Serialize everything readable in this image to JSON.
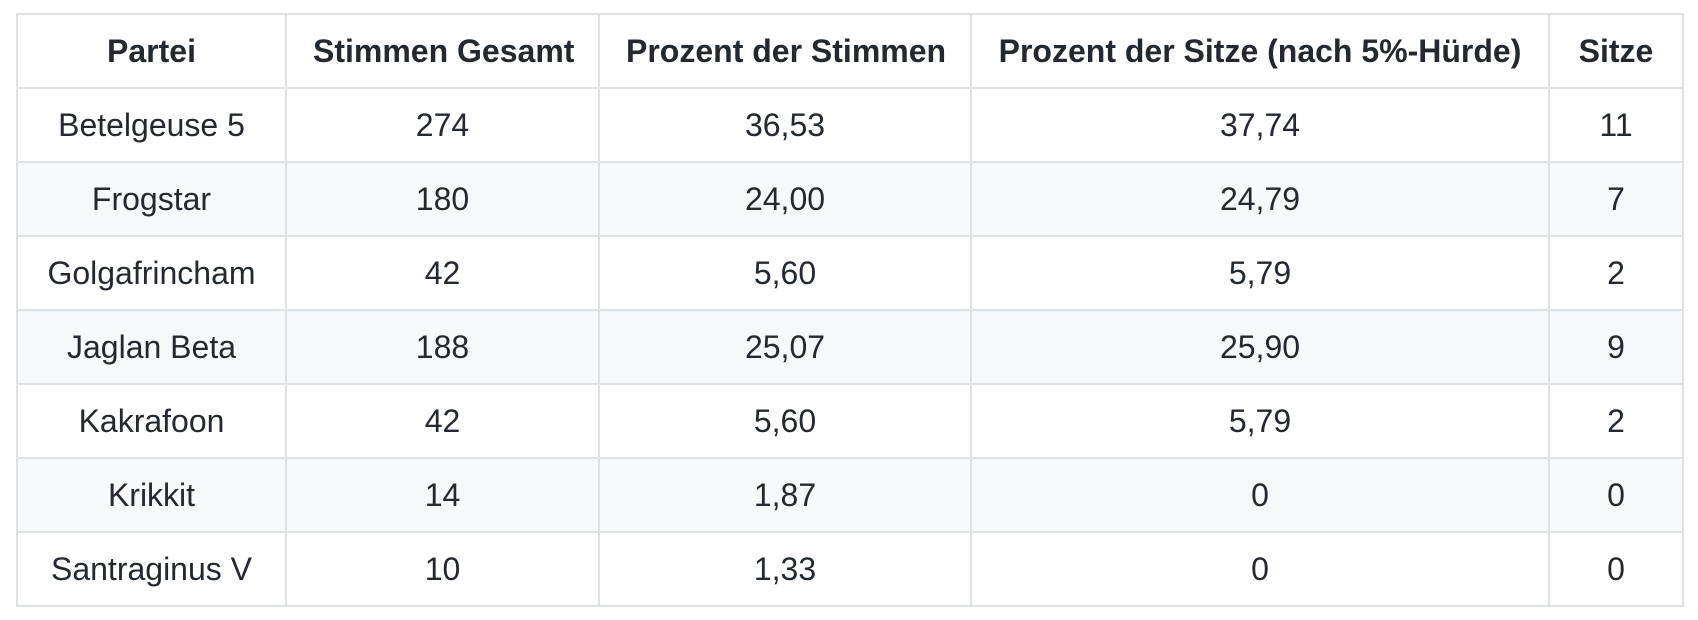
{
  "table": {
    "columns": [
      "Partei",
      "Stimmen Gesamt",
      "Prozent der Stimmen",
      "Prozent der Sitze (nach 5%-Hürde)",
      "Sitze"
    ],
    "rows": [
      [
        "Betelgeuse 5",
        "274",
        "36,53",
        "37,74",
        "11"
      ],
      [
        "Frogstar",
        "180",
        "24,00",
        "24,79",
        "7"
      ],
      [
        "Golgafrincham",
        "42",
        "5,60",
        "5,79",
        "2"
      ],
      [
        "Jaglan Beta",
        "188",
        "25,07",
        "25,90",
        "9"
      ],
      [
        "Kakrafoon",
        "42",
        "5,60",
        "5,79",
        "2"
      ],
      [
        "Krikkit",
        "14",
        "1,87",
        "0",
        "0"
      ],
      [
        "Santraginus V",
        "10",
        "1,33",
        "0",
        "0"
      ]
    ]
  },
  "colors": {
    "border": "#dfe2e5",
    "stripe": "#f6f8fa",
    "text": "#24292f",
    "background": "#ffffff"
  }
}
